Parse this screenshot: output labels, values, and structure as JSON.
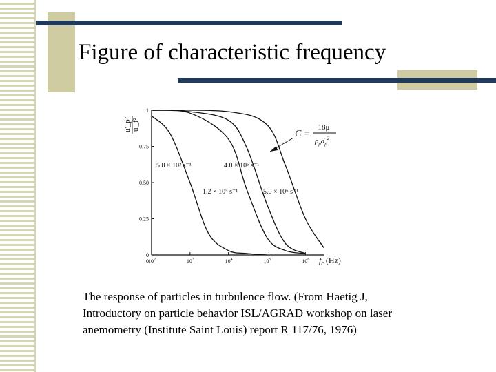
{
  "slide": {
    "title": "Figure of characteristic frequency",
    "caption_lines": [
      "The response of particles in turbulence flow. (From Haetig J,",
      "Introductory on particle behavior ISL/AGRAD workshop on laser",
      "anemometry (Institute Saint Louis) report R 117/76, 1976)"
    ],
    "colors": {
      "accent_bar": "#1f3a5c",
      "tan": "#cfcca1",
      "stripe": "#d7d6b4"
    }
  },
  "chart_data": {
    "type": "line",
    "ylabel_num": "u'_p²",
    "ylabel_den": "u'_f²",
    "xlabel": "f",
    "xlabel_sub": "c",
    "xunit": "(Hz)",
    "x_scale": "log",
    "xlim": [
      100,
      3000000
    ],
    "ylim": [
      0,
      1
    ],
    "yticks": [
      "0",
      "0.25",
      "0.50",
      "0.75",
      "1"
    ],
    "xticks": [
      {
        "base": "10",
        "exp": "2",
        "value": 100
      },
      {
        "base": "10",
        "exp": "3",
        "value": 1000
      },
      {
        "base": "10",
        "exp": "4",
        "value": 10000
      },
      {
        "base": "10",
        "exp": "5",
        "value": 100000
      },
      {
        "base": "10",
        "exp": "6",
        "value": 1000000
      }
    ],
    "grid": false,
    "series": [
      {
        "label": "5.8 × 10³ s⁻¹",
        "x": [
          100,
          300,
          1000,
          3000,
          10000,
          30000,
          100000
        ],
        "y": [
          0.96,
          0.84,
          0.5,
          0.15,
          0.03,
          0.01,
          0.0
        ]
      },
      {
        "label": "1.2 × 10⁵ s⁻¹",
        "x": [
          100,
          1000,
          10000,
          30000,
          100000,
          300000,
          1000000
        ],
        "y": [
          1.0,
          0.98,
          0.8,
          0.45,
          0.12,
          0.03,
          0.01
        ]
      },
      {
        "label": "4.0 × 10⁵ s⁻¹",
        "x": [
          100,
          1000,
          10000,
          30000,
          100000,
          300000,
          1000000
        ],
        "y": [
          1.0,
          0.99,
          0.93,
          0.74,
          0.35,
          0.08,
          0.01
        ]
      },
      {
        "label": "5.0 × 10⁶ s⁻¹",
        "x": [
          100,
          10000,
          100000,
          300000,
          1000000,
          3000000
        ],
        "y": [
          1.0,
          0.99,
          0.9,
          0.62,
          0.25,
          0.05
        ]
      }
    ],
    "annotation": {
      "lhs": "C =",
      "num": "18μ",
      "den": "ρ",
      "den_sub": "p",
      "den2": "d",
      "den2_sub": "p",
      "den2_sup": "2"
    }
  }
}
